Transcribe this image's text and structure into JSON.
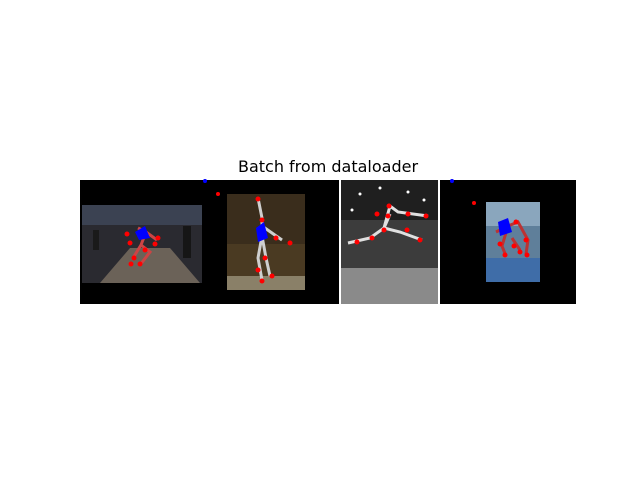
{
  "chart_data": {
    "type": "image_grid",
    "title": "Batch from dataloader",
    "panel_count": 4,
    "colors": {
      "background": "#000000",
      "joint": "#ff0000",
      "limb_highlight": "#0000ff"
    }
  }
}
